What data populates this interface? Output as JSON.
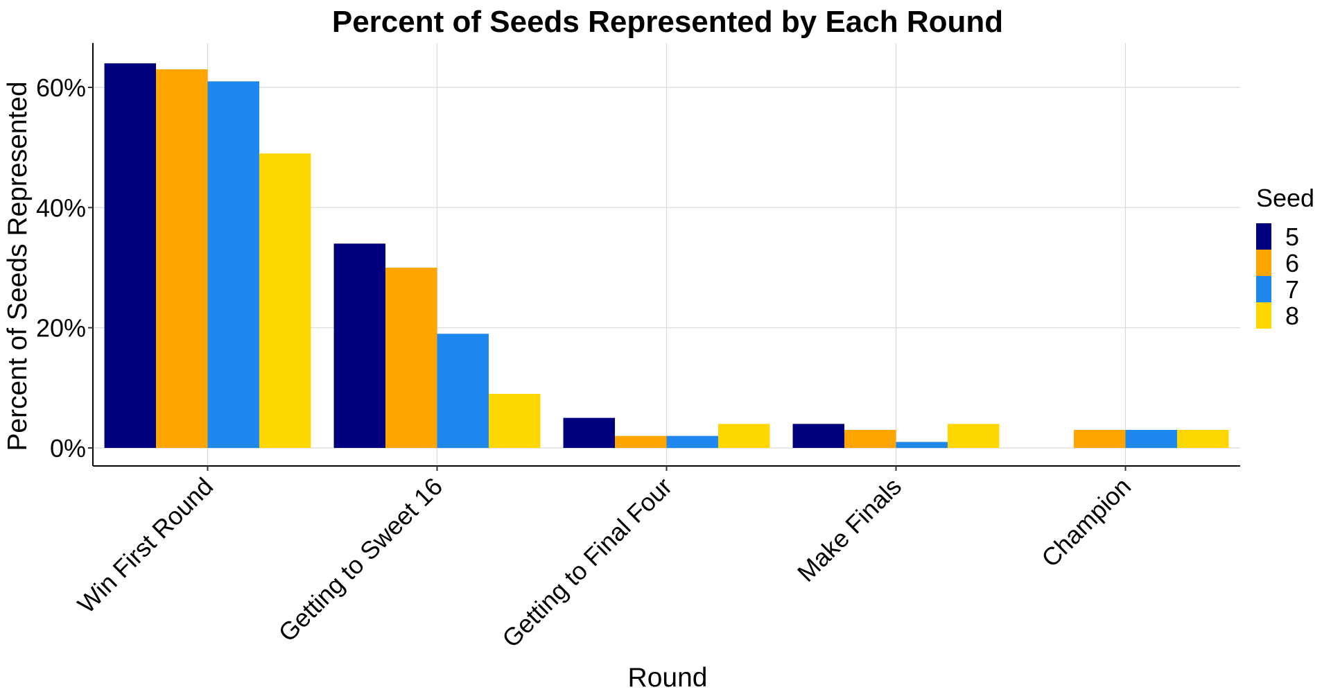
{
  "chart_data": {
    "type": "bar",
    "title": "Percent of Seeds Represented by Each Round",
    "xlabel": "Round",
    "ylabel": "Percent of Seeds Represented",
    "categories": [
      "Win First Round",
      "Getting to Sweet 16",
      "Getting to Final Four",
      "Make Finals",
      "Champion"
    ],
    "y_ticks": [
      0,
      20,
      40,
      60
    ],
    "y_tick_labels": [
      "0%",
      "20%",
      "40%",
      "60%"
    ],
    "ylim": [
      -3,
      67
    ],
    "legend": {
      "title": "Seed",
      "position": "right"
    },
    "grid": true,
    "series": [
      {
        "name": "5",
        "color": "#00007F",
        "values": [
          64,
          34,
          5,
          4,
          0
        ]
      },
      {
        "name": "6",
        "color": "#FFA500",
        "values": [
          63,
          30,
          2,
          3,
          3
        ]
      },
      {
        "name": "7",
        "color": "#1E88F0",
        "values": [
          61,
          19,
          2,
          1,
          3
        ]
      },
      {
        "name": "8",
        "color": "#FFD700",
        "values": [
          49,
          9,
          4,
          4,
          3
        ]
      }
    ]
  }
}
